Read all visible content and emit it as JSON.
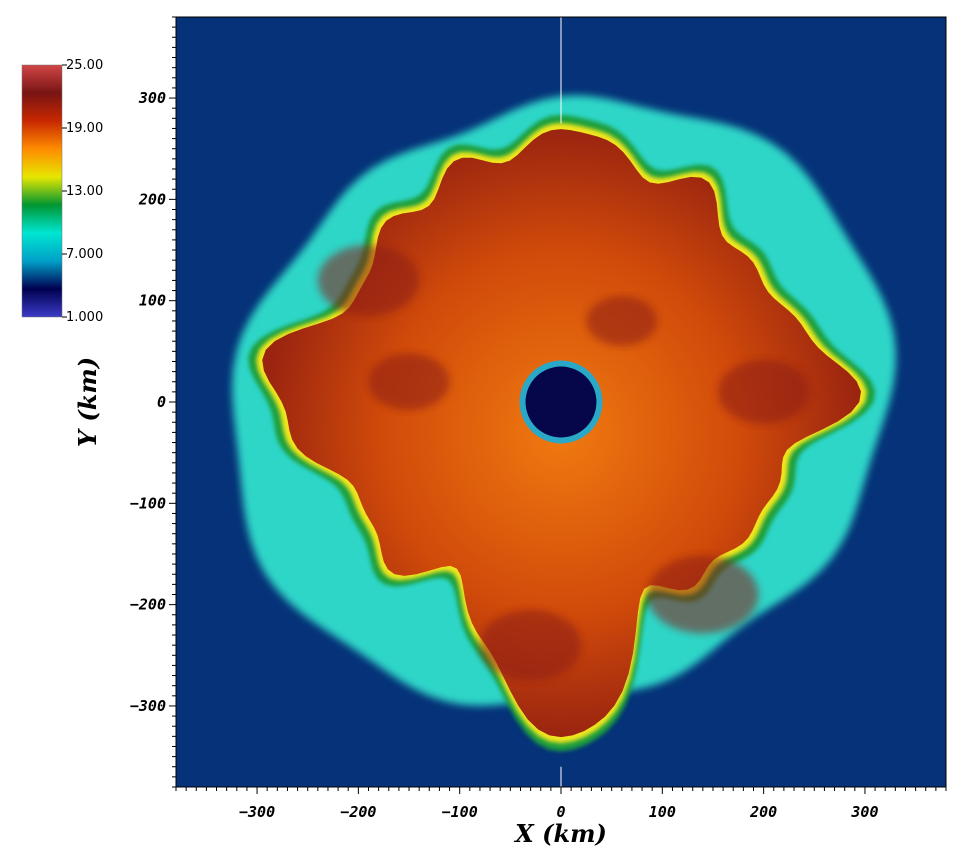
{
  "chart_data": {
    "type": "heatmap",
    "title": "",
    "xlabel": "X  (km)",
    "ylabel": "Y  (km)",
    "xlim": [
      -380,
      380
    ],
    "ylim": [
      -380,
      380
    ],
    "x_ticks": [
      -300,
      -200,
      -100,
      0,
      100,
      200,
      300
    ],
    "y_ticks": [
      -300,
      -200,
      -100,
      0,
      100,
      200,
      300
    ],
    "x_tick_labels": [
      "−300",
      "−200",
      "−100",
      "0",
      "100",
      "200",
      "300"
    ],
    "y_tick_labels": [
      "−300",
      "−200",
      "−100",
      "0",
      "100",
      "200",
      "300"
    ],
    "colorbar": {
      "min": 1.0,
      "max": 25.0,
      "ticks": [
        25,
        19,
        13,
        7,
        1
      ],
      "tick_labels": [
        "25.00",
        "19.00",
        "13.00",
        "7.000",
        "1.000"
      ],
      "colormap": [
        "#3c3cc8",
        "#000050",
        "#00a0c8",
        "#00e6d2",
        "#009632",
        "#e6e600",
        "#ff8c00",
        "#c82800",
        "#781414",
        "#d24646"
      ]
    },
    "features": {
      "background_value": 6.0,
      "shock_radius_km": [
        280,
        340
      ],
      "lobes": [
        {
          "angle_deg": 90,
          "extent_km": 280
        },
        {
          "angle_deg": 0,
          "extent_km": 280
        },
        {
          "angle_deg": 180,
          "extent_km": 290
        },
        {
          "angle_deg": 270,
          "extent_km": 320
        },
        {
          "angle_deg": 45,
          "extent_km": 250
        },
        {
          "angle_deg": 135,
          "extent_km": 250
        }
      ],
      "core_radius_km": 35
    },
    "colors": {
      "background_field": "#053278",
      "shock_shell": "#2ed6c8",
      "green_edge": "#1e9e3c",
      "yellow_edge": "#f0e61e",
      "hot_ejecta": "#d85a0a",
      "dark_ejecta": "#8c1e12",
      "core": "#06064a"
    }
  }
}
